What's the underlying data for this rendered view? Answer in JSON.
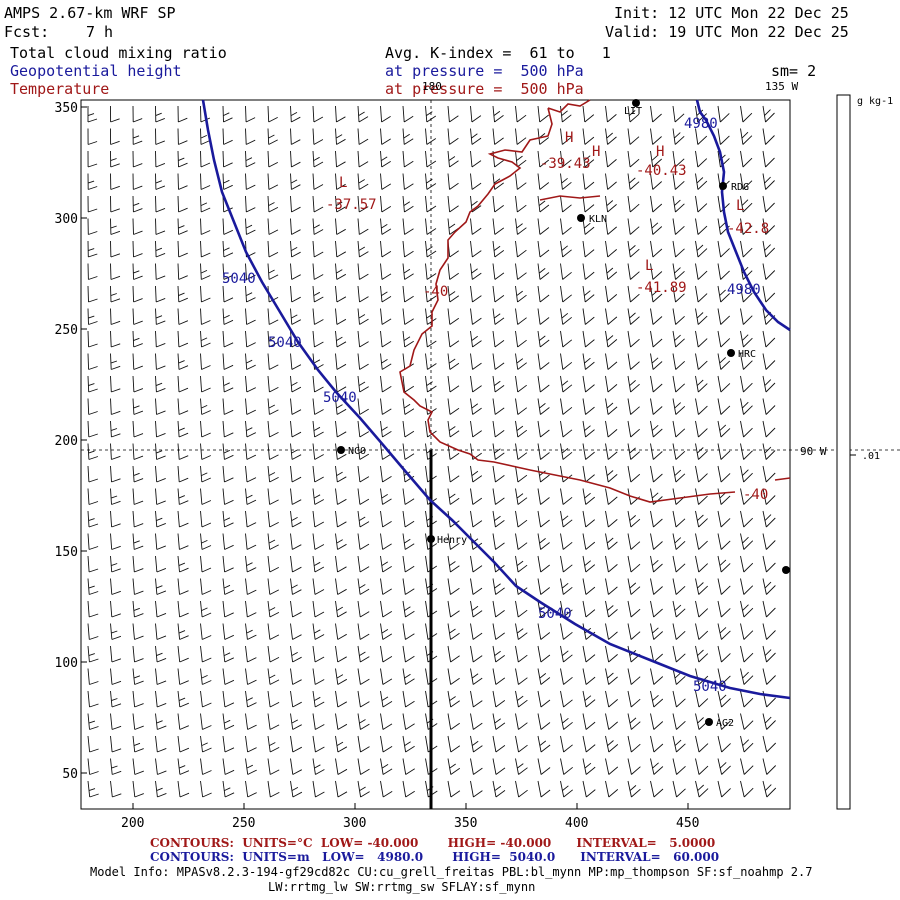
{
  "header": {
    "model": "AMPS 2.67-km WRF SP",
    "forecast_label": "Fcst:",
    "forecast_value": "7 h",
    "init": "Init: 12 UTC Mon 22 Dec 25",
    "valid": "Valid: 19 UTC Mon 22 Dec 25",
    "field1": "Total cloud mixing ratio",
    "field2": "Geopotential height",
    "field3": "Temperature",
    "avg": "Avg. K-index =  61 to   1",
    "pressure1": "at pressure =  500 hPa",
    "pressure2": "at pressure =  500 hPa",
    "sm": "sm= 2"
  },
  "colors": {
    "height_contour": "#1a1a9c",
    "temperature_contour": "#a01818",
    "barb": "#111111"
  },
  "map": {
    "x_ticks": [
      "200",
      "250",
      "300",
      "350",
      "400",
      "450"
    ],
    "y_ticks": [
      "50",
      "100",
      "150",
      "200",
      "250",
      "300",
      "350"
    ],
    "meridian_labels": [
      "180",
      "135 W",
      "90 W"
    ],
    "stations": [
      "NCO",
      "Henry",
      "KLN",
      "RDG",
      "HRC",
      "AG2",
      "LIT"
    ],
    "height_labels": [
      "5040",
      "5040",
      "5040",
      "5040",
      "5040",
      "4980",
      "4980"
    ],
    "temperature_labels": [
      "-37.57",
      "-39.43",
      "-40.43",
      "-42.8",
      "-41.89",
      "-40",
      "-40"
    ],
    "low_markers": [
      "L",
      "L",
      "L"
    ],
    "high_markers": [
      "H",
      "H",
      "H"
    ]
  },
  "colorbar": {
    "units": "g kg-1",
    "tick": ".01"
  },
  "footer": {
    "temp_line": "CONTOURS:  UNITS=°C  LOW= -40.000       HIGH= -40.000      INTERVAL=   5.0000",
    "height_line": "CONTOURS:  UNITS=m   LOW=   4980.0       HIGH=  5040.0      INTERVAL=   60.000",
    "model_info_1": "Model Info: MPASv8.2.3-194-gf29cd82c CU:cu_grell_freitas PBL:bl_mynn MP:mp_thompson SF:sf_noahmp 2.7",
    "model_info_2": "LW:rrtmg_lw SW:rrtmg_sw SFLAY:sf_mynn"
  }
}
